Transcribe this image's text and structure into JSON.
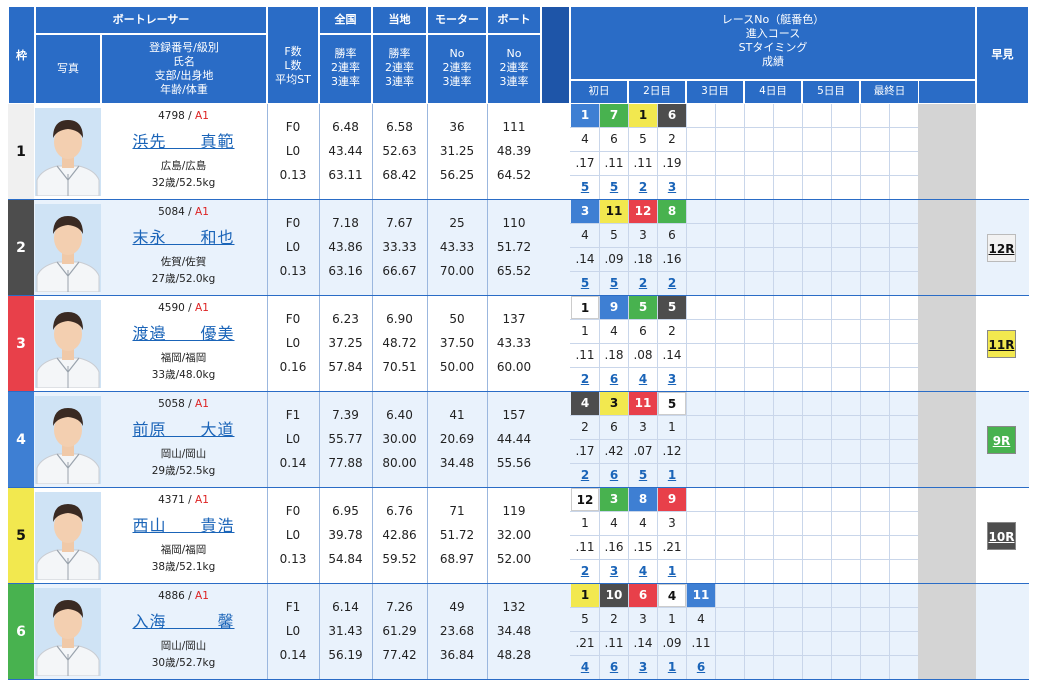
{
  "header": {
    "waku": "枠",
    "photo": "写真",
    "racer": "ボートレーサー",
    "racer_sub": [
      "登録番号/級別",
      "氏名",
      "支部/出身地",
      "年齢/体重"
    ],
    "fl": [
      "F数",
      "L数",
      "平均ST"
    ],
    "zenkoku": "全国",
    "tochi": "当地",
    "motor": "モーター",
    "boat": "ボート",
    "rate_sub": [
      "勝率",
      "2連率",
      "3連率"
    ],
    "no_sub": [
      "No",
      "2連率",
      "3連率"
    ],
    "race_info": [
      "レースNo（艇番色）",
      "進入コース",
      "STタイミング",
      "成績"
    ],
    "hayami": "早見",
    "days": [
      "初日",
      "2日目",
      "3日目",
      "4日目",
      "5日目",
      "最終日"
    ],
    "konsetsu": [
      "今",
      "節",
      "成",
      "績"
    ]
  },
  "colors": {
    "1": "#ffffff",
    "2": "#4d4d4d",
    "3": "#e8404a",
    "4": "#3e7fd3",
    "5": "#f2e84f",
    "6": "#48b24f"
  },
  "racers": [
    {
      "waku": "1",
      "reg": "4798",
      "cls": "A1",
      "name": "浜先　　真範",
      "home": "広島/広島",
      "age": "32歳/52.5kg",
      "fl": [
        "F0",
        "L0",
        "0.13"
      ],
      "zenkoku": [
        "6.48",
        "43.44",
        "63.11"
      ],
      "tochi": [
        "6.58",
        "52.63",
        "68.42"
      ],
      "motor": [
        "36",
        "31.25",
        "56.25"
      ],
      "boat": [
        "111",
        "48.39",
        "64.52"
      ],
      "races": [
        {
          "race": "1",
          "boat": 4,
          "course": "4",
          "st": ".17",
          "result": "5"
        },
        {
          "race": "7",
          "boat": 6,
          "course": "6",
          "st": ".11",
          "result": "5"
        },
        {
          "race": "1",
          "boat": 5,
          "course": "5",
          "st": ".11",
          "result": "2"
        },
        {
          "race": "6",
          "boat": 2,
          "course": "2",
          "st": ".19",
          "result": "3"
        }
      ],
      "hayami": null
    },
    {
      "waku": "2",
      "reg": "5084",
      "cls": "A1",
      "name": "末永　　和也",
      "home": "佐賀/佐賀",
      "age": "27歳/52.0kg",
      "fl": [
        "F0",
        "L0",
        "0.13"
      ],
      "zenkoku": [
        "7.18",
        "43.86",
        "63.16"
      ],
      "tochi": [
        "7.67",
        "33.33",
        "66.67"
      ],
      "motor": [
        "25",
        "43.33",
        "70.00"
      ],
      "boat": [
        "110",
        "51.72",
        "65.52"
      ],
      "races": [
        {
          "race": "3",
          "boat": 4,
          "course": "4",
          "st": ".14",
          "result": "5"
        },
        {
          "race": "11",
          "boat": 5,
          "course": "5",
          "st": ".09",
          "result": "5"
        },
        {
          "race": "12",
          "boat": 3,
          "course": "3",
          "st": ".18",
          "result": "2"
        },
        {
          "race": "8",
          "boat": 6,
          "course": "6",
          "st": ".16",
          "result": "2"
        }
      ],
      "hayami": {
        "label": "12R",
        "boat": 1
      }
    },
    {
      "waku": "3",
      "reg": "4590",
      "cls": "A1",
      "name": "渡邉　　優美",
      "home": "福岡/福岡",
      "age": "33歳/48.0kg",
      "fl": [
        "F0",
        "L0",
        "0.16"
      ],
      "zenkoku": [
        "6.23",
        "37.25",
        "57.84"
      ],
      "tochi": [
        "6.90",
        "48.72",
        "70.51"
      ],
      "motor": [
        "50",
        "37.50",
        "50.00"
      ],
      "boat": [
        "137",
        "43.33",
        "60.00"
      ],
      "races": [
        {
          "race": "1",
          "boat": 1,
          "course": "1",
          "st": ".11",
          "result": "2"
        },
        {
          "race": "9",
          "boat": 4,
          "course": "4",
          "st": ".18",
          "result": "6"
        },
        {
          "race": "5",
          "boat": 6,
          "course": "6",
          "st": ".08",
          "result": "4"
        },
        {
          "race": "5",
          "boat": 2,
          "course": "2",
          "st": ".14",
          "result": "3"
        }
      ],
      "hayami": {
        "label": "11R",
        "boat": 5
      }
    },
    {
      "waku": "4",
      "reg": "5058",
      "cls": "A1",
      "name": "前原　　大道",
      "home": "岡山/岡山",
      "age": "29歳/52.5kg",
      "fl": [
        "F1",
        "L0",
        "0.14"
      ],
      "zenkoku": [
        "7.39",
        "55.77",
        "77.88"
      ],
      "tochi": [
        "6.40",
        "30.00",
        "80.00"
      ],
      "motor": [
        "41",
        "20.69",
        "34.48"
      ],
      "boat": [
        "157",
        "44.44",
        "55.56"
      ],
      "races": [
        {
          "race": "4",
          "boat": 2,
          "course": "2",
          "st": ".17",
          "result": "2"
        },
        {
          "race": "3",
          "boat": 5,
          "course": "6",
          "st": ".42",
          "result": "6"
        },
        {
          "race": "11",
          "boat": 3,
          "course": "3",
          "st": ".07",
          "result": "5"
        },
        {
          "race": "5",
          "boat": 1,
          "course": "1",
          "st": ".12",
          "result": "1"
        }
      ],
      "hayami": {
        "label": "9R",
        "boat": 6
      }
    },
    {
      "waku": "5",
      "reg": "4371",
      "cls": "A1",
      "name": "西山　　貴浩",
      "home": "福岡/福岡",
      "age": "38歳/52.1kg",
      "fl": [
        "F0",
        "L0",
        "0.13"
      ],
      "zenkoku": [
        "6.95",
        "39.78",
        "54.84"
      ],
      "tochi": [
        "6.76",
        "42.86",
        "59.52"
      ],
      "motor": [
        "71",
        "51.72",
        "68.97"
      ],
      "boat": [
        "119",
        "32.00",
        "52.00"
      ],
      "races": [
        {
          "race": "12",
          "boat": 1,
          "course": "1",
          "st": ".11",
          "result": "2"
        },
        {
          "race": "3",
          "boat": 6,
          "course": "4",
          "st": ".16",
          "result": "3"
        },
        {
          "race": "8",
          "boat": 4,
          "course": "4",
          "st": ".15",
          "result": "4"
        },
        {
          "race": "9",
          "boat": 3,
          "course": "3",
          "st": ".21",
          "result": "1"
        }
      ],
      "hayami": {
        "label": "10R",
        "boat": 2
      }
    },
    {
      "waku": "6",
      "reg": "4886",
      "cls": "A1",
      "name": "入海　　　馨",
      "home": "岡山/岡山",
      "age": "30歳/52.7kg",
      "fl": [
        "F1",
        "L0",
        "0.14"
      ],
      "zenkoku": [
        "6.14",
        "31.43",
        "56.19"
      ],
      "tochi": [
        "7.26",
        "61.29",
        "77.42"
      ],
      "motor": [
        "49",
        "23.68",
        "36.84"
      ],
      "boat": [
        "132",
        "34.48",
        "48.28"
      ],
      "races": [
        {
          "race": "1",
          "boat": 5,
          "course": "5",
          "st": ".21",
          "result": "4"
        },
        {
          "race": "10",
          "boat": 2,
          "course": "2",
          "st": ".11",
          "result": "6"
        },
        {
          "race": "6",
          "boat": 3,
          "course": "3",
          "st": ".14",
          "result": "3"
        },
        {
          "race": "4",
          "boat": 1,
          "course": "1",
          "st": ".09",
          "result": "1"
        },
        {
          "race": "11",
          "boat": 4,
          "course": "4",
          "st": ".11",
          "result": "6"
        }
      ],
      "hayami": null
    }
  ]
}
